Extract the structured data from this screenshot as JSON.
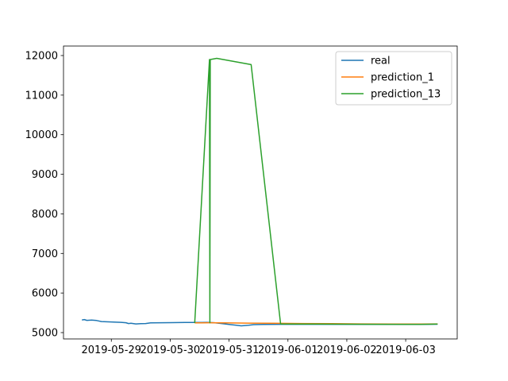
{
  "chart_data": {
    "type": "line",
    "title": "",
    "xlabel": "",
    "ylabel": "",
    "x_axis": {
      "kind": "date",
      "ticks": [
        "2019-05-29",
        "2019-05-30",
        "2019-05-31",
        "2019-06-01",
        "2019-06-02",
        "2019-06-03"
      ],
      "xlim": [
        "2019-05-28 04:30",
        "2019-06-03 21:00"
      ]
    },
    "y_axis": {
      "ticks": [
        5000,
        6000,
        7000,
        8000,
        9000,
        10000,
        11000,
        12000
      ],
      "ylim": [
        4840,
        12240
      ]
    },
    "grid": false,
    "legend": {
      "placement": "top-right"
    },
    "series": [
      {
        "name": "real",
        "color": "#1f77b4",
        "points": [
          [
            "2019-05-28 12:00",
            5320
          ],
          [
            "2019-05-28 13:00",
            5330
          ],
          [
            "2019-05-28 14:00",
            5310
          ],
          [
            "2019-05-28 16:00",
            5315
          ],
          [
            "2019-05-28 18:00",
            5305
          ],
          [
            "2019-05-28 20:00",
            5280
          ],
          [
            "2019-05-29 00:00",
            5270
          ],
          [
            "2019-05-29 04:00",
            5260
          ],
          [
            "2019-05-29 06:00",
            5250
          ],
          [
            "2019-05-29 07:00",
            5230
          ],
          [
            "2019-05-29 08:00",
            5235
          ],
          [
            "2019-05-29 10:00",
            5220
          ],
          [
            "2019-05-29 12:00",
            5225
          ],
          [
            "2019-05-29 14:00",
            5230
          ],
          [
            "2019-05-29 16:00",
            5245
          ],
          [
            "2019-05-29 20:00",
            5250
          ],
          [
            "2019-05-30 00:00",
            5252
          ],
          [
            "2019-05-30 06:00",
            5255
          ],
          [
            "2019-05-30 12:00",
            5255
          ],
          [
            "2019-05-30 15:00",
            5260
          ],
          [
            "2019-05-30 18:00",
            5250
          ],
          [
            "2019-05-30 21:00",
            5230
          ],
          [
            "2019-05-31 00:00",
            5205
          ],
          [
            "2019-05-31 03:00",
            5185
          ],
          [
            "2019-05-31 05:00",
            5170
          ],
          [
            "2019-05-31 08:00",
            5185
          ],
          [
            "2019-05-31 10:00",
            5200
          ],
          [
            "2019-05-31 14:00",
            5205
          ],
          [
            "2019-05-31 20:00",
            5210
          ],
          [
            "2019-06-01 06:00",
            5210
          ],
          [
            "2019-06-01 18:00",
            5210
          ],
          [
            "2019-06-02 06:00",
            5210
          ],
          [
            "2019-06-02 18:00",
            5210
          ],
          [
            "2019-06-03 06:00",
            5210
          ],
          [
            "2019-06-03 13:00",
            5212
          ]
        ]
      },
      {
        "name": "prediction_1",
        "color": "#ff7f0e",
        "points": [
          [
            "2019-05-30 10:00",
            5245
          ],
          [
            "2019-05-30 16:00",
            5250
          ],
          [
            "2019-05-30 22:00",
            5245
          ],
          [
            "2019-05-31 08:00",
            5240
          ],
          [
            "2019-05-31 18:00",
            5235
          ],
          [
            "2019-06-01 06:00",
            5230
          ],
          [
            "2019-06-01 18:00",
            5225
          ],
          [
            "2019-06-02 06:00",
            5220
          ],
          [
            "2019-06-02 18:00",
            5218
          ],
          [
            "2019-06-03 06:00",
            5215
          ],
          [
            "2019-06-03 13:00",
            5220
          ]
        ]
      },
      {
        "name": "prediction_13",
        "color": "#2ca02c",
        "points": [
          [
            "2019-05-30 10:00",
            5240
          ],
          [
            "2019-05-30 16:00",
            11900
          ],
          [
            "2019-05-30 16:10",
            5250
          ],
          [
            "2019-05-30 16:20",
            11900
          ],
          [
            "2019-05-30 19:00",
            11930
          ],
          [
            "2019-05-31 09:00",
            11770
          ],
          [
            "2019-05-31 21:00",
            5220
          ],
          [
            "2019-06-01 12:00",
            5215
          ],
          [
            "2019-06-02 06:00",
            5212
          ],
          [
            "2019-06-03 06:00",
            5210
          ],
          [
            "2019-06-03 13:00",
            5215
          ]
        ]
      }
    ]
  }
}
